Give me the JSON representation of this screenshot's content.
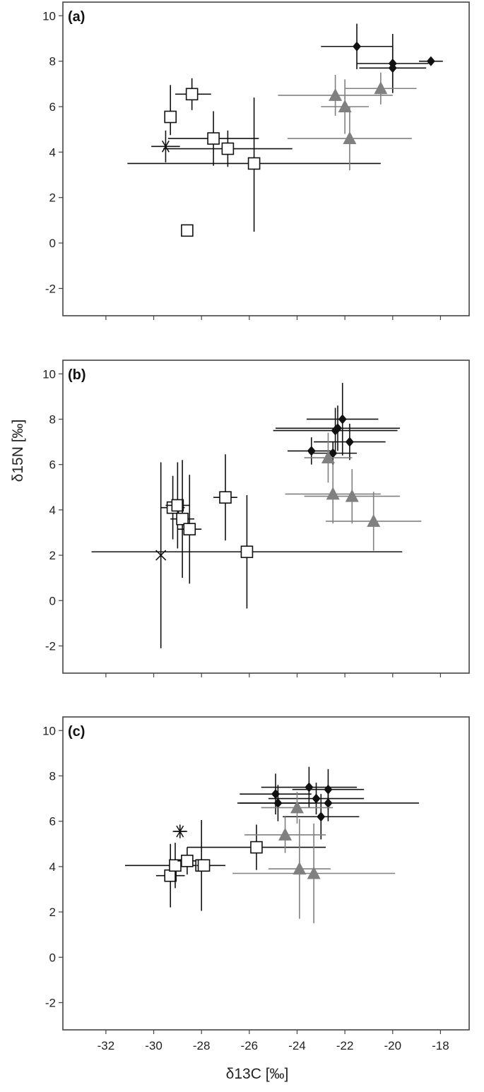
{
  "figure": {
    "xlabel": "δ13C [‰]",
    "ylabel": "δ15N [‰]",
    "colors": {
      "frame": "#444444",
      "black_series": "#111111",
      "gray_series": "#808080"
    }
  },
  "chart_data": [
    {
      "type": "scatter",
      "label": "(a)",
      "xlim": [
        -33.8,
        -16.8
      ],
      "ylim": [
        -3.2,
        10.6
      ],
      "xticks": [
        -32,
        -30,
        -28,
        -26,
        -24,
        -22,
        -20,
        -18
      ],
      "yticks": [
        -2,
        0,
        2,
        4,
        6,
        8,
        10
      ],
      "show_x_tick_labels": false,
      "grid": false,
      "series": [
        {
          "marker": "open-square",
          "color": "#111111",
          "points": [
            {
              "x": -29.3,
              "y": 5.55,
              "xerr": [
                0.2,
                0.2
              ],
              "yerr": [
                0.8,
                1.4
              ]
            },
            {
              "x": -28.4,
              "y": 6.55,
              "xerr": [
                0.7,
                0.8
              ],
              "yerr": [
                0.7,
                0.7
              ]
            },
            {
              "x": -27.5,
              "y": 4.6,
              "xerr": [
                1.9,
                1.9
              ],
              "yerr": [
                1.2,
                1.2
              ]
            },
            {
              "x": -26.9,
              "y": 4.15,
              "xerr": [
                2.7,
                2.7
              ],
              "yerr": [
                0.8,
                0.8
              ]
            },
            {
              "x": -25.8,
              "y": 3.5,
              "xerr": [
                5.3,
                5.3
              ],
              "yerr": [
                3.0,
                2.9
              ]
            },
            {
              "x": -28.6,
              "y": 0.55
            }
          ]
        },
        {
          "marker": "asterisk",
          "color": "#111111",
          "points": [
            {
              "x": -29.5,
              "y": 4.25,
              "xerr": [
                0.6,
                0.6
              ],
              "yerr": [
                0.7,
                0.7
              ]
            }
          ]
        },
        {
          "marker": "filled-diamond",
          "color": "#111111",
          "points": [
            {
              "x": -21.5,
              "y": 8.65,
              "xerr": [
                1.5,
                1.5
              ],
              "yerr": [
                1.0,
                1.0
              ]
            },
            {
              "x": -20.0,
              "y": 7.9,
              "xerr": [
                1.5,
                1.5
              ],
              "yerr": [
                1.3,
                1.3
              ]
            },
            {
              "x": -20.0,
              "y": 7.7,
              "xerr": [
                1.4,
                1.4
              ],
              "yerr": [
                1.0,
                1.0
              ]
            },
            {
              "x": -18.4,
              "y": 8.0,
              "xerr": [
                0.5,
                0.5
              ]
            }
          ]
        },
        {
          "marker": "filled-triangle",
          "color": "#808080",
          "points": [
            {
              "x": -22.4,
              "y": 6.5,
              "xerr": [
                2.4,
                2.4
              ],
              "yerr": [
                0.9,
                0.9
              ]
            },
            {
              "x": -22.0,
              "y": 6.0,
              "xerr": [
                1.0,
                1.0
              ],
              "yerr": [
                1.2,
                1.2
              ]
            },
            {
              "x": -21.8,
              "y": 4.6,
              "xerr": [
                2.6,
                2.6
              ],
              "yerr": [
                1.4,
                1.4
              ]
            },
            {
              "x": -20.5,
              "y": 6.8,
              "xerr": [
                1.5,
                1.5
              ],
              "yerr": [
                0.7,
                0.7
              ]
            }
          ]
        }
      ]
    },
    {
      "type": "scatter",
      "label": "(b)",
      "xlim": [
        -33.8,
        -16.8
      ],
      "ylim": [
        -3.2,
        10.6
      ],
      "xticks": [
        -32,
        -30,
        -28,
        -26,
        -24,
        -22,
        -20,
        -18
      ],
      "yticks": [
        -2,
        0,
        2,
        4,
        6,
        8,
        10
      ],
      "show_x_tick_labels": false,
      "grid": false,
      "series": [
        {
          "marker": "open-square",
          "color": "#111111",
          "points": [
            {
              "x": -29.2,
              "y": 4.1,
              "xerr": [
                0.5,
                0.5
              ],
              "yerr": [
                1.4,
                1.4
              ]
            },
            {
              "x": -29.0,
              "y": 4.2,
              "xerr": [
                0.5,
                0.5
              ],
              "yerr": [
                1.9,
                1.9
              ]
            },
            {
              "x": -28.8,
              "y": 3.6,
              "xerr": [
                0.5,
                0.5
              ],
              "yerr": [
                2.6,
                2.6
              ]
            },
            {
              "x": -28.5,
              "y": 3.15,
              "xerr": [
                0.5,
                0.5
              ],
              "yerr": [
                2.4,
                2.4
              ]
            },
            {
              "x": -27.0,
              "y": 4.55,
              "xerr": [
                0.5,
                0.5
              ],
              "yerr": [
                1.9,
                1.9
              ]
            },
            {
              "x": -26.1,
              "y": 2.15,
              "xerr": [
                6.5,
                6.5
              ],
              "yerr": [
                2.5,
                2.5
              ]
            }
          ]
        },
        {
          "marker": "cross",
          "color": "#111111",
          "points": [
            {
              "x": -29.7,
              "y": 2.0,
              "yerr": [
                4.1,
                4.1
              ]
            }
          ]
        },
        {
          "marker": "filled-diamond",
          "color": "#111111",
          "points": [
            {
              "x": -23.4,
              "y": 6.6,
              "xerr": [
                1.0,
                1.0
              ],
              "yerr": [
                0.6,
                0.6
              ]
            },
            {
              "x": -22.5,
              "y": 6.5,
              "xerr": [
                1.0,
                1.0
              ],
              "yerr": [
                0.5,
                0.5
              ]
            },
            {
              "x": -22.4,
              "y": 7.5,
              "xerr": [
                2.6,
                2.6
              ],
              "yerr": [
                1.0,
                1.0
              ]
            },
            {
              "x": -22.3,
              "y": 7.6,
              "xerr": [
                2.6,
                2.6
              ],
              "yerr": [
                1.0,
                1.0
              ]
            },
            {
              "x": -22.1,
              "y": 8.0,
              "xerr": [
                1.5,
                1.5
              ],
              "yerr": [
                1.6,
                1.6
              ]
            },
            {
              "x": -21.8,
              "y": 7.0,
              "xerr": [
                1.5,
                1.5
              ],
              "yerr": [
                0.8,
                0.8
              ]
            }
          ]
        },
        {
          "marker": "filled-triangle",
          "color": "#808080",
          "points": [
            {
              "x": -22.7,
              "y": 6.3,
              "xerr": [
                1.0,
                1.0
              ],
              "yerr": [
                1.1,
                1.1
              ]
            },
            {
              "x": -22.5,
              "y": 4.7,
              "xerr": [
                2.0,
                2.0
              ],
              "yerr": [
                1.3,
                1.3
              ]
            },
            {
              "x": -21.7,
              "y": 4.6,
              "xerr": [
                2.0,
                2.0
              ],
              "yerr": [
                1.2,
                1.2
              ]
            },
            {
              "x": -20.8,
              "y": 3.5,
              "xerr": [
                2.0,
                2.0
              ],
              "yerr": [
                1.3,
                1.3
              ]
            }
          ]
        }
      ]
    },
    {
      "type": "scatter",
      "label": "(c)",
      "xlim": [
        -33.8,
        -16.8
      ],
      "ylim": [
        -3.2,
        10.6
      ],
      "xticks": [
        -32,
        -30,
        -28,
        -26,
        -24,
        -22,
        -20,
        -18
      ],
      "yticks": [
        -2,
        0,
        2,
        4,
        6,
        8,
        10
      ],
      "show_x_tick_labels": true,
      "grid": false,
      "series": [
        {
          "marker": "open-square",
          "color": "#111111",
          "points": [
            {
              "x": -29.3,
              "y": 3.6,
              "xerr": [
                0.6,
                0.6
              ],
              "yerr": [
                1.4,
                1.4
              ]
            },
            {
              "x": -29.1,
              "y": 4.05,
              "xerr": [
                2.1,
                2.1
              ],
              "yerr": [
                1.0,
                1.0
              ]
            },
            {
              "x": -28.6,
              "y": 4.25,
              "xerr": [
                0.4,
                0.4
              ],
              "yerr": [
                0.6,
                0.6
              ]
            },
            {
              "x": -28.0,
              "y": 4.05,
              "xerr": [
                0.3,
                0.3
              ],
              "yerr": [
                2.0,
                2.0
              ]
            },
            {
              "x": -27.9,
              "y": 4.05,
              "xerr": [
                0.3,
                0.3
              ]
            },
            {
              "x": -25.7,
              "y": 4.85,
              "xerr": [
                2.9,
                2.9
              ],
              "yerr": [
                1.0,
                1.0
              ]
            }
          ]
        },
        {
          "marker": "asterisk",
          "color": "#111111",
          "points": [
            {
              "x": -28.9,
              "y": 5.55,
              "xerr": [
                0.3,
                0.3
              ],
              "yerr": [
                0.3,
                0.3
              ]
            }
          ]
        },
        {
          "marker": "filled-diamond",
          "color": "#111111",
          "points": [
            {
              "x": -24.9,
              "y": 7.2,
              "xerr": [
                1.5,
                1.5
              ],
              "yerr": [
                0.9,
                0.9
              ]
            },
            {
              "x": -24.8,
              "y": 6.8,
              "xerr": [
                1.6,
                1.6
              ],
              "yerr": [
                0.8,
                0.8
              ]
            },
            {
              "x": -23.5,
              "y": 7.5,
              "xerr": [
                2.0,
                2.0
              ],
              "yerr": [
                0.9,
                0.9
              ]
            },
            {
              "x": -23.2,
              "y": 7.0,
              "xerr": [
                2.0,
                2.0
              ],
              "yerr": [
                0.7,
                0.7
              ]
            },
            {
              "x": -22.7,
              "y": 7.4,
              "xerr": [
                1.5,
                1.5
              ],
              "yerr": [
                0.9,
                0.9
              ]
            },
            {
              "x": -22.7,
              "y": 6.8,
              "xerr": [
                3.8,
                3.8
              ],
              "yerr": [
                0.8,
                0.8
              ]
            },
            {
              "x": -23.0,
              "y": 6.2,
              "xerr": [
                1.6,
                1.6
              ],
              "yerr": [
                1.0,
                1.0
              ]
            }
          ]
        },
        {
          "marker": "filled-triangle",
          "color": "#808080",
          "points": [
            {
              "x": -24.5,
              "y": 5.4,
              "xerr": [
                1.7,
                1.7
              ],
              "yerr": [
                0.8,
                0.8
              ]
            },
            {
              "x": -24.0,
              "y": 6.6,
              "xerr": [
                1.5,
                1.5
              ],
              "yerr": [
                0.7,
                0.7
              ]
            },
            {
              "x": -23.9,
              "y": 3.9,
              "xerr": [
                1.3,
                1.3
              ],
              "yerr": [
                2.2,
                2.2
              ]
            },
            {
              "x": -23.3,
              "y": 3.7,
              "xerr": [
                3.4,
                3.4
              ],
              "yerr": [
                2.2,
                2.2
              ]
            }
          ]
        }
      ]
    }
  ]
}
